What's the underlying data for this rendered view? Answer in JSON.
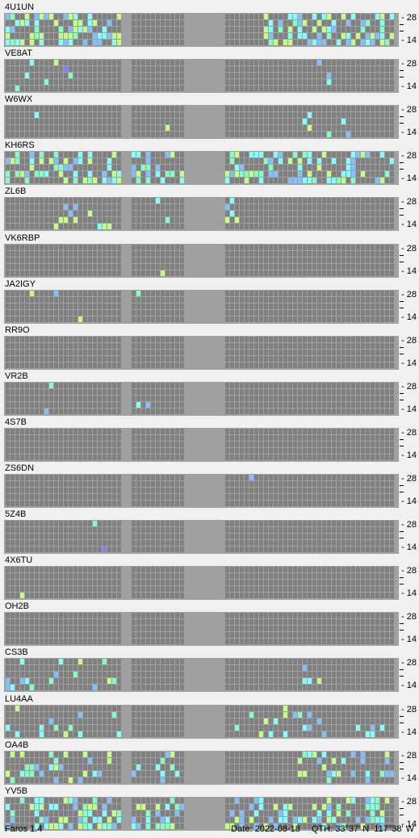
{
  "window": {
    "app_version": "Faros 1.4"
  },
  "status": {
    "date_label": "Date:",
    "date": "2022-08-18",
    "qth_label": "QTH:",
    "qth": "33°37' N  117°38' W"
  },
  "axis": {
    "top_label": "28",
    "bottom_label": "14",
    "rows": 5
  },
  "colors": {
    "background": "#f0f0f0",
    "grid_bg": "#a0a0a0",
    "cell_empty": "#808080",
    "cell_cyan": "#80ffff",
    "cell_blue": "#80c0ff",
    "cell_green": "#80ffc0",
    "cell_lightgreen": "#c0ff80",
    "cell_purple": "#8080ff"
  },
  "beacons": [
    {
      "name": "4U1UN"
    },
    {
      "name": "VE8AT"
    },
    {
      "name": "W6WX"
    },
    {
      "name": "KH6RS"
    },
    {
      "name": "ZL6B"
    },
    {
      "name": "VK6RBP"
    },
    {
      "name": "JA2IGY"
    },
    {
      "name": "RR9O"
    },
    {
      "name": "VR2B"
    },
    {
      "name": "4S7B"
    },
    {
      "name": "ZS6DN"
    },
    {
      "name": "5Z4B"
    },
    {
      "name": "4X6TU"
    },
    {
      "name": "OH2B"
    },
    {
      "name": "CS3B"
    },
    {
      "name": "LU4AA"
    },
    {
      "name": "OA4B"
    },
    {
      "name": "YV5B"
    }
  ]
}
